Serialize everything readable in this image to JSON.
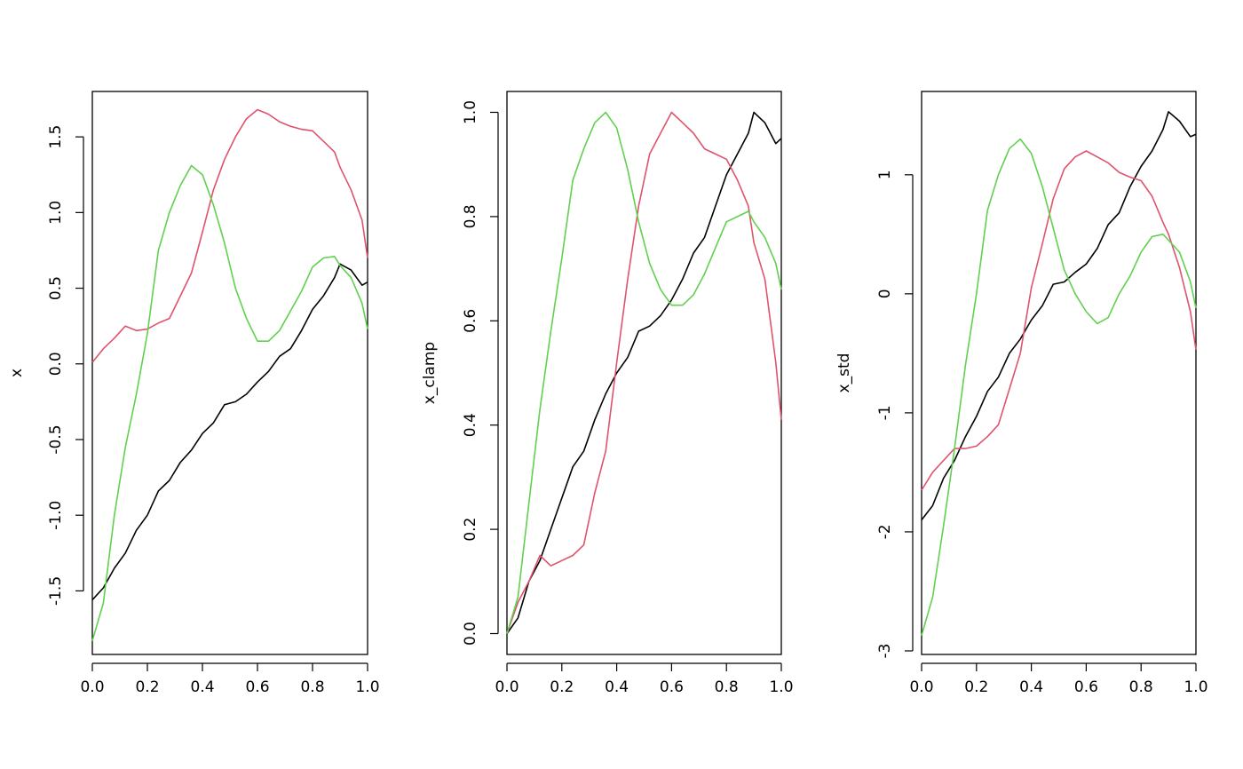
{
  "colors": {
    "series1": "#000000",
    "series2": "#DF536B",
    "series3": "#61D04F"
  },
  "chart_data": [
    {
      "type": "line",
      "xlabel": "",
      "ylabel": "x",
      "xlim": [
        0,
        1
      ],
      "ylim": [
        -1.92,
        1.8
      ],
      "xticks": [
        "0.0",
        "0.2",
        "0.4",
        "0.6",
        "0.8",
        "1.0"
      ],
      "yticks": [
        "-1.5",
        "-1.0",
        "-0.5",
        "0.0",
        "0.5",
        "1.0",
        "1.5"
      ],
      "x": [
        0,
        0.04,
        0.08,
        0.12,
        0.16,
        0.2,
        0.24,
        0.28,
        0.32,
        0.36,
        0.4,
        0.44,
        0.48,
        0.52,
        0.56,
        0.6,
        0.64,
        0.68,
        0.72,
        0.76,
        0.8,
        0.84,
        0.88,
        0.9,
        0.94,
        0.98,
        1.0
      ],
      "series": [
        {
          "values": [
            -1.56,
            -1.48,
            -1.35,
            -1.25,
            -1.1,
            -1.0,
            -0.84,
            -0.77,
            -0.65,
            -0.57,
            -0.46,
            -0.39,
            -0.27,
            -0.25,
            -0.2,
            -0.12,
            -0.05,
            0.05,
            0.1,
            0.22,
            0.36,
            0.45,
            0.57,
            0.66,
            0.62,
            0.52,
            0.54
          ]
        },
        {
          "values": [
            0.01,
            0.1,
            0.17,
            0.25,
            0.22,
            0.23,
            0.27,
            0.3,
            0.45,
            0.6,
            0.87,
            1.15,
            1.35,
            1.5,
            1.62,
            1.68,
            1.65,
            1.6,
            1.57,
            1.55,
            1.54,
            1.47,
            1.4,
            1.3,
            1.15,
            0.95,
            0.7
          ]
        },
        {
          "values": [
            -1.83,
            -1.58,
            -1.0,
            -0.55,
            -0.2,
            0.2,
            0.75,
            1.0,
            1.18,
            1.31,
            1.25,
            1.05,
            0.8,
            0.5,
            0.3,
            0.15,
            0.15,
            0.22,
            0.35,
            0.48,
            0.64,
            0.7,
            0.71,
            0.65,
            0.57,
            0.4,
            0.23
          ]
        }
      ]
    },
    {
      "type": "line",
      "xlabel": "",
      "ylabel": "x_clamp",
      "xlim": [
        0,
        1
      ],
      "ylim": [
        -0.04,
        1.04
      ],
      "xticks": [
        "0.0",
        "0.2",
        "0.4",
        "0.6",
        "0.8",
        "1.0"
      ],
      "yticks": [
        "0.0",
        "0.2",
        "0.4",
        "0.6",
        "0.8",
        "1.0"
      ],
      "x": [
        0,
        0.04,
        0.08,
        0.12,
        0.16,
        0.2,
        0.24,
        0.28,
        0.32,
        0.36,
        0.4,
        0.44,
        0.48,
        0.52,
        0.56,
        0.6,
        0.64,
        0.68,
        0.72,
        0.76,
        0.8,
        0.84,
        0.88,
        0.9,
        0.94,
        0.98,
        1.0
      ],
      "series": [
        {
          "values": [
            0.0,
            0.03,
            0.1,
            0.14,
            0.2,
            0.26,
            0.32,
            0.35,
            0.41,
            0.46,
            0.5,
            0.53,
            0.58,
            0.59,
            0.61,
            0.64,
            0.68,
            0.73,
            0.76,
            0.82,
            0.88,
            0.92,
            0.96,
            1.0,
            0.98,
            0.94,
            0.95
          ]
        },
        {
          "values": [
            0.0,
            0.06,
            0.1,
            0.15,
            0.13,
            0.14,
            0.15,
            0.17,
            0.27,
            0.35,
            0.52,
            0.68,
            0.82,
            0.92,
            0.96,
            1.0,
            0.98,
            0.96,
            0.93,
            0.92,
            0.91,
            0.87,
            0.82,
            0.75,
            0.68,
            0.52,
            0.41
          ]
        },
        {
          "values": [
            0.0,
            0.07,
            0.25,
            0.43,
            0.58,
            0.72,
            0.87,
            0.93,
            0.98,
            1.0,
            0.97,
            0.89,
            0.79,
            0.71,
            0.66,
            0.63,
            0.63,
            0.65,
            0.69,
            0.74,
            0.79,
            0.8,
            0.81,
            0.79,
            0.76,
            0.71,
            0.66
          ]
        }
      ]
    },
    {
      "type": "line",
      "xlabel": "",
      "ylabel": "x_std",
      "xlim": [
        0,
        1
      ],
      "ylim": [
        -3.03,
        1.7
      ],
      "xticks": [
        "0.0",
        "0.2",
        "0.4",
        "0.6",
        "0.8",
        "1.0"
      ],
      "yticks": [
        "-3",
        "-2",
        "-1",
        "0",
        "1"
      ],
      "x": [
        0,
        0.04,
        0.08,
        0.12,
        0.16,
        0.2,
        0.24,
        0.28,
        0.32,
        0.36,
        0.4,
        0.44,
        0.48,
        0.52,
        0.56,
        0.6,
        0.64,
        0.68,
        0.72,
        0.76,
        0.8,
        0.84,
        0.88,
        0.9,
        0.94,
        0.98,
        1.0
      ],
      "series": [
        {
          "values": [
            -1.9,
            -1.78,
            -1.55,
            -1.4,
            -1.2,
            -1.03,
            -0.82,
            -0.7,
            -0.5,
            -0.38,
            -0.22,
            -0.1,
            0.08,
            0.1,
            0.18,
            0.25,
            0.38,
            0.58,
            0.68,
            0.9,
            1.07,
            1.2,
            1.38,
            1.53,
            1.45,
            1.32,
            1.34
          ]
        },
        {
          "values": [
            -1.65,
            -1.5,
            -1.4,
            -1.3,
            -1.3,
            -1.28,
            -1.2,
            -1.1,
            -0.8,
            -0.5,
            0.05,
            0.42,
            0.8,
            1.05,
            1.15,
            1.2,
            1.15,
            1.1,
            1.02,
            0.98,
            0.95,
            0.82,
            0.6,
            0.5,
            0.22,
            -0.15,
            -0.47
          ]
        },
        {
          "values": [
            -2.87,
            -2.55,
            -1.95,
            -1.3,
            -0.6,
            0.0,
            0.7,
            1.0,
            1.22,
            1.3,
            1.18,
            0.9,
            0.55,
            0.2,
            0.0,
            -0.15,
            -0.25,
            -0.2,
            0.0,
            0.15,
            0.35,
            0.48,
            0.5,
            0.45,
            0.35,
            0.1,
            -0.12
          ]
        }
      ]
    }
  ]
}
